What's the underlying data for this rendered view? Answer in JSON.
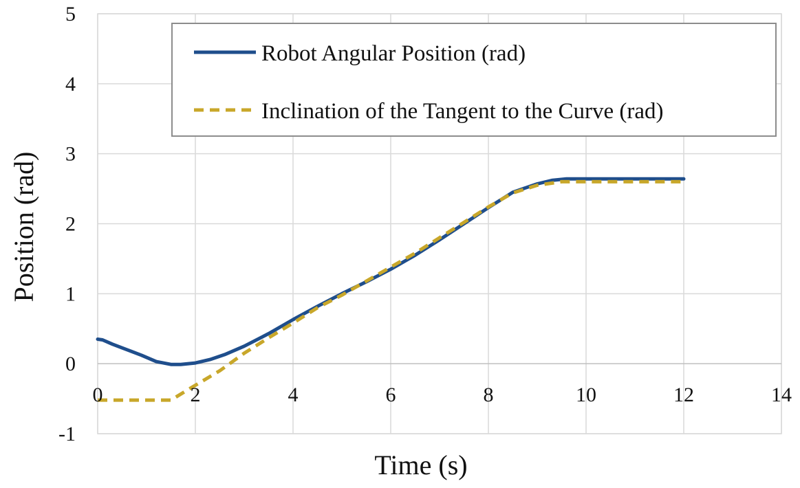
{
  "chart_data": {
    "type": "line",
    "xlabel": "Time (s)",
    "ylabel": "Position (rad)",
    "xlim": [
      0,
      14
    ],
    "ylim": [
      -1,
      5
    ],
    "xticks": [
      0,
      2,
      4,
      6,
      8,
      10,
      12,
      14
    ],
    "yticks": [
      -1,
      0,
      1,
      2,
      3,
      4,
      5
    ],
    "grid": true,
    "legend": "top-right",
    "series": [
      {
        "name": "Robot Angular Position (rad)",
        "color": "#1f4e8c",
        "style": "solid",
        "x": [
          0,
          0.1,
          0.3,
          0.6,
          0.9,
          1.2,
          1.5,
          1.7,
          2.0,
          2.3,
          2.6,
          3.0,
          3.5,
          4.0,
          4.5,
          5.0,
          5.5,
          6.0,
          6.5,
          7.0,
          7.5,
          8.0,
          8.5,
          9.0,
          9.3,
          9.6,
          10.0,
          10.5,
          11.0,
          11.5,
          12.0
        ],
        "y": [
          0.35,
          0.34,
          0.28,
          0.2,
          0.12,
          0.03,
          -0.01,
          -0.01,
          0.01,
          0.06,
          0.13,
          0.25,
          0.43,
          0.63,
          0.82,
          1.0,
          1.17,
          1.35,
          1.55,
          1.77,
          2.0,
          2.23,
          2.45,
          2.57,
          2.62,
          2.64,
          2.64,
          2.64,
          2.64,
          2.64,
          2.64
        ]
      },
      {
        "name": "Inclination of the Tangent to the Curve (rad)",
        "color": "#c8a72a",
        "style": "dashed",
        "x": [
          0,
          0.5,
          1.0,
          1.5,
          1.9,
          2.5,
          3.0,
          3.5,
          4.0,
          4.5,
          5.0,
          5.5,
          6.0,
          6.5,
          7.0,
          7.5,
          8.0,
          8.5,
          9.0,
          9.5,
          10.0,
          11.0,
          12.0
        ],
        "y": [
          -0.52,
          -0.52,
          -0.52,
          -0.52,
          -0.35,
          -0.1,
          0.15,
          0.37,
          0.58,
          0.8,
          0.98,
          1.18,
          1.38,
          1.58,
          1.8,
          2.02,
          2.24,
          2.44,
          2.55,
          2.6,
          2.6,
          2.6,
          2.6
        ]
      }
    ]
  }
}
